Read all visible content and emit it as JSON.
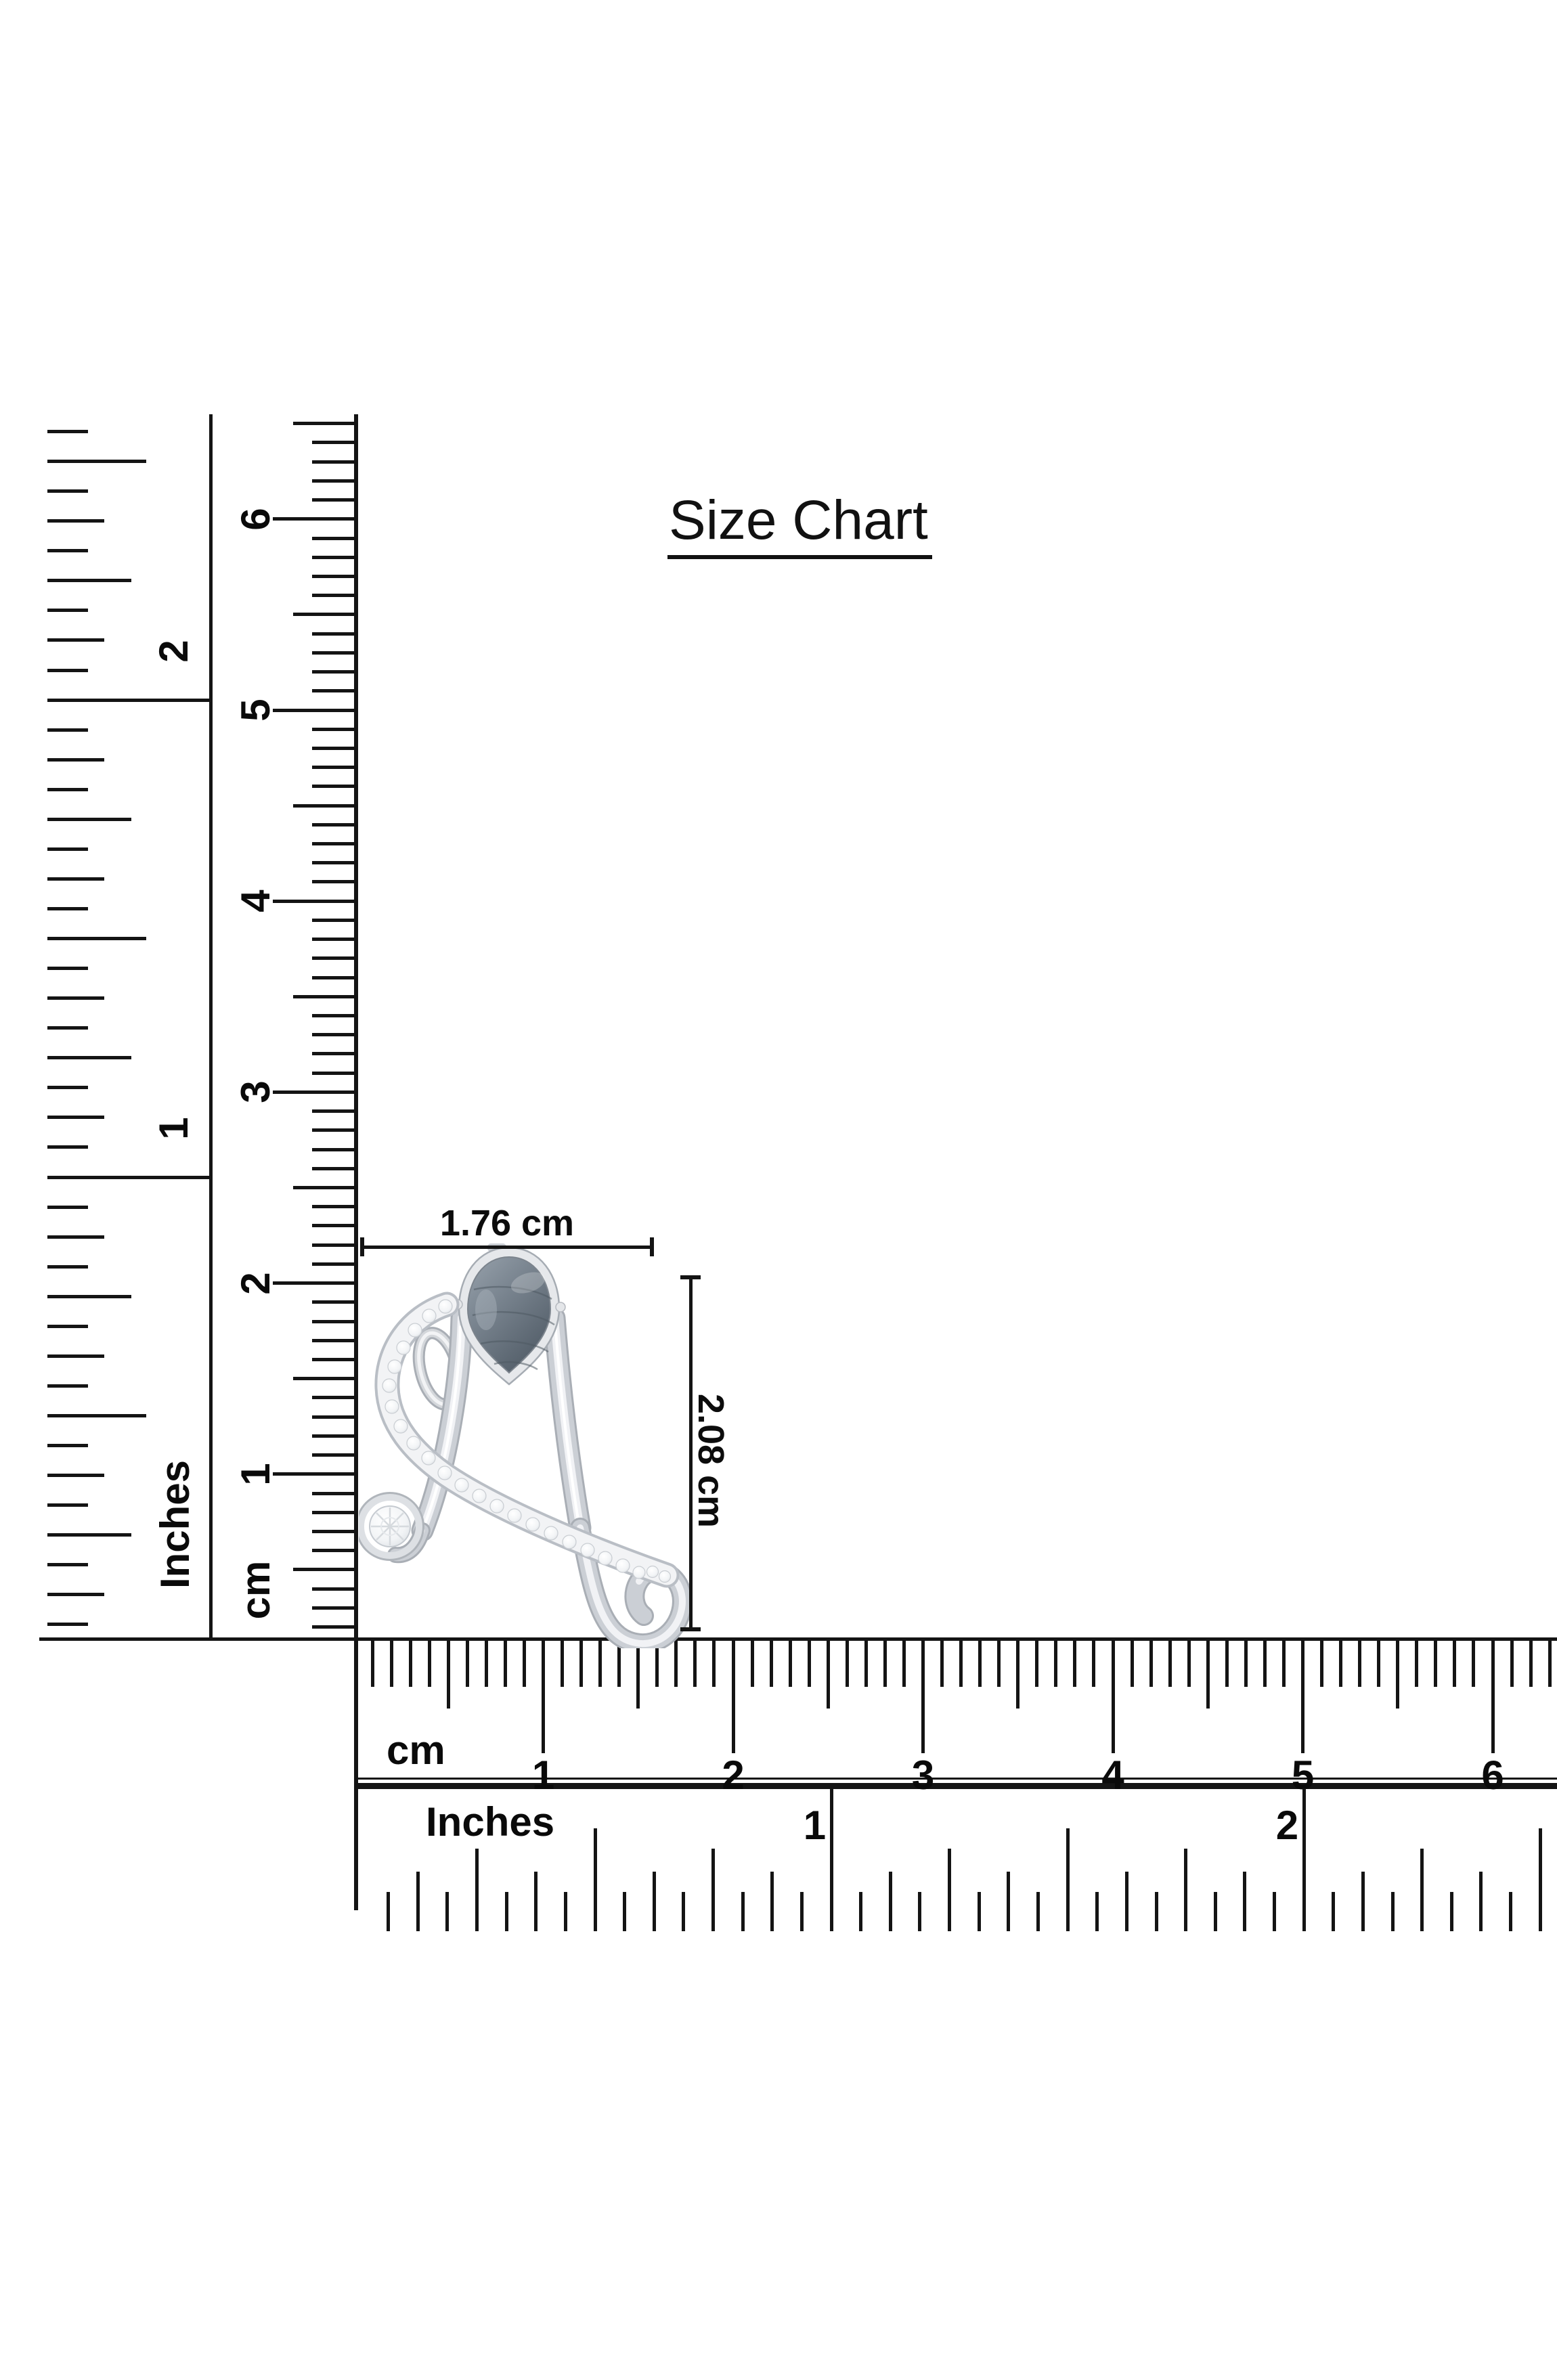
{
  "title": "Size Chart",
  "annotations": {
    "width": "1.76 cm",
    "height": "2.08 cm"
  },
  "measurements": {
    "pendant_width_cm": 1.76,
    "pendant_height_cm": 2.08
  },
  "rulers": {
    "vertical_inches": {
      "label": "Inches",
      "numbers": [
        "1",
        "2"
      ]
    },
    "vertical_cm": {
      "label": "cm",
      "numbers": [
        "1",
        "2",
        "3",
        "4",
        "5",
        "6"
      ]
    },
    "horizontal_cm": {
      "label": "cm",
      "numbers": [
        "1",
        "2",
        "3",
        "4",
        "5",
        "6"
      ]
    },
    "horizontal_inches": {
      "label": "Inches",
      "numbers": [
        "1",
        "2"
      ]
    }
  },
  "pendant": {
    "stone_color": "#7b8692",
    "metal_color": "#d6d9dd",
    "diamond_color": "#f4f6f8",
    "ink_color": "#141414"
  }
}
